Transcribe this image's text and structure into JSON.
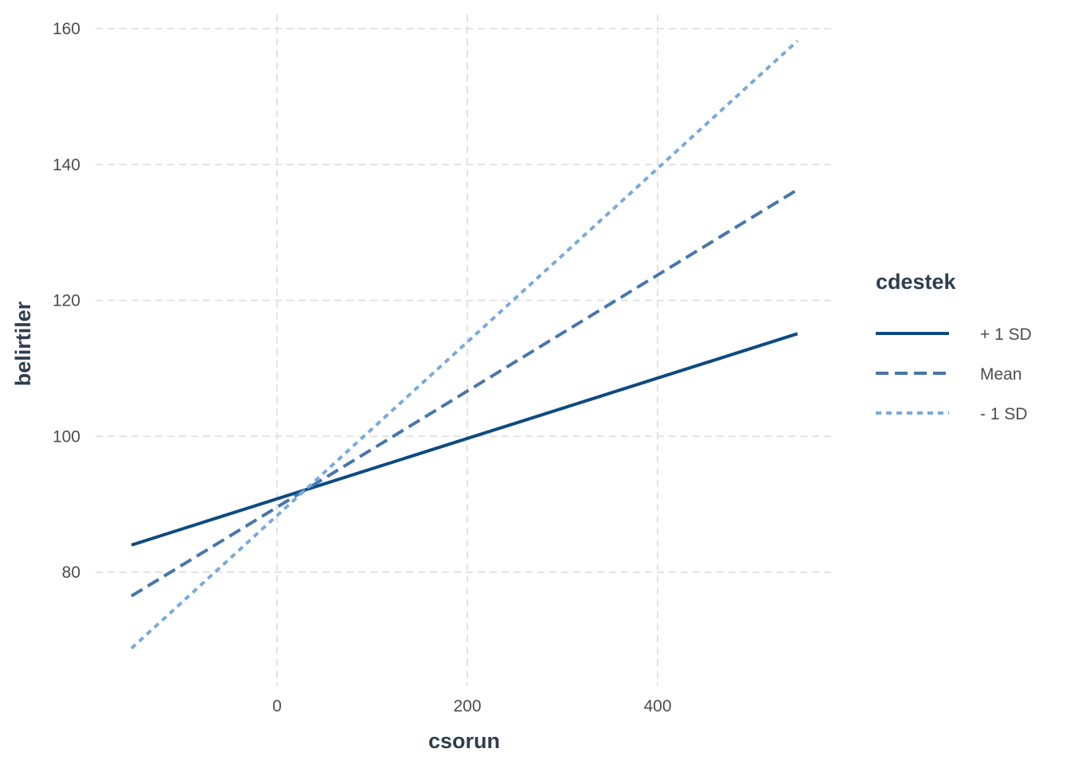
{
  "chart_data": {
    "type": "line",
    "xlabel": "csorun",
    "ylabel": "belirtiler",
    "xlim": [
      -160,
      560
    ],
    "ylim": [
      66,
      162
    ],
    "x_ticks": [
      0,
      200,
      400
    ],
    "y_ticks": [
      80,
      100,
      120,
      140,
      160
    ],
    "grid": true,
    "legend": {
      "title": "cdestek",
      "placement": "right"
    },
    "series": [
      {
        "name": "+ 1 SD",
        "color": "#0d4a80",
        "dash": "solid",
        "x": [
          -153,
          547
        ],
        "y": [
          84.0,
          115.1
        ]
      },
      {
        "name": "Mean",
        "color": "#4776ab",
        "dash": "dashed",
        "x": [
          -153,
          547
        ],
        "y": [
          76.5,
          136.3
        ]
      },
      {
        "name": "- 1 SD",
        "color": "#7aaad9",
        "dash": "dotted",
        "x": [
          -153,
          547
        ],
        "y": [
          68.8,
          158.2
        ]
      }
    ]
  }
}
